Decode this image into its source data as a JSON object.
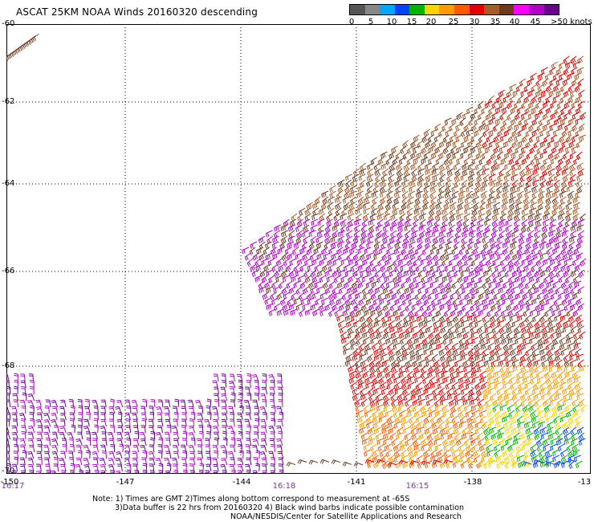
{
  "header": {
    "title": "ASCAT 25KM NOAA Winds 20160320 descending"
  },
  "legend": {
    "colors": [
      "#555555",
      "#888888",
      "#00a8ff",
      "#0046ff",
      "#00b400",
      "#ffd400",
      "#ff9a00",
      "#ff5a00",
      "#e00000",
      "#a55a2a",
      "#6b3a20",
      "#ff00ff",
      "#b000c8",
      "#6a0090"
    ],
    "labels": [
      "0",
      "5",
      "10",
      "15",
      "20",
      "25",
      "30",
      "35",
      "40",
      "45"
    ],
    "unit": ">50 knots"
  },
  "map": {
    "lat_labels": [
      "-60",
      "-62",
      "-64",
      "-66",
      "-68",
      "-70"
    ],
    "lon_labels": [
      "-150",
      "-147",
      "-144",
      "-141",
      "-138",
      "-13"
    ],
    "time_labels": [
      "16:17",
      "16:18",
      "16:15"
    ],
    "grid_style": "dotted"
  },
  "footer": {
    "note_line1": "Note: 1) Times are GMT 2)Times along bottom correspond to measurement at -65S",
    "note_line2": "3)Data buffer is 22 hrs from 20160320 4) Black wind barbs indicate possible contamination",
    "note_line3": "NOAA/NESDIS/Center for Satellite Applications and Research"
  }
}
